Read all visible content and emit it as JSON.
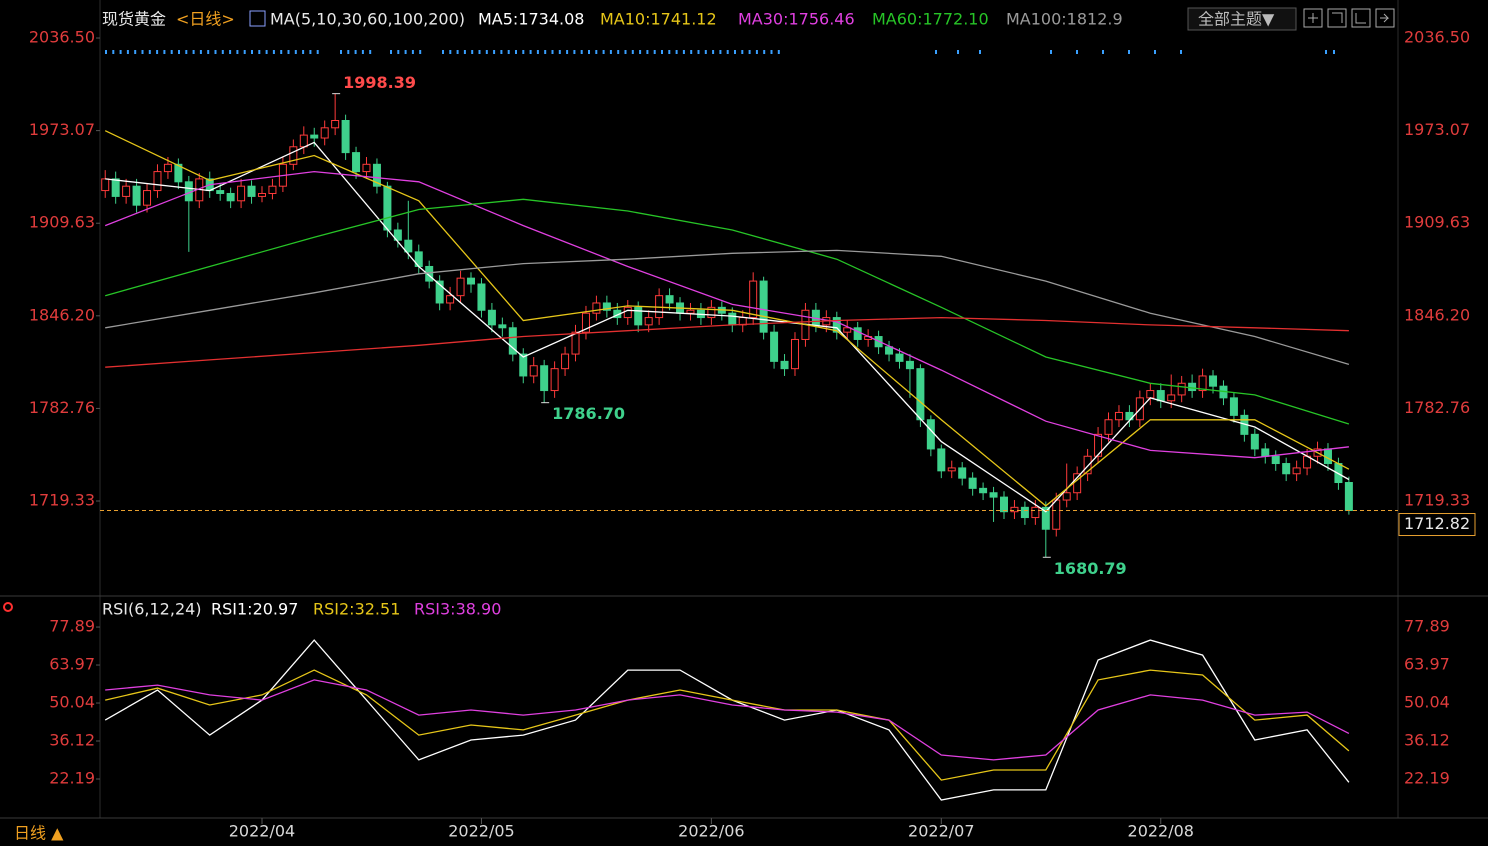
{
  "ui": {
    "theme_button": "全部主题▼",
    "period_button": "日线 ▲"
  },
  "chart_data": [
    {
      "type": "candlestick",
      "title": "现货黄金",
      "period": "<日线>",
      "indicator": "MA(5,10,30,60,100,200)",
      "up_color": "#ff3b3b",
      "down_color": "#3fd18c",
      "candles": [
        [
          1932,
          1946,
          1927,
          1940
        ],
        [
          1940,
          1945,
          1923,
          1928
        ],
        [
          1928,
          1940,
          1923,
          1935
        ],
        [
          1935,
          1940,
          1917,
          1922
        ],
        [
          1922,
          1937,
          1917,
          1932
        ],
        [
          1932,
          1950,
          1927,
          1945
        ],
        [
          1945,
          1955,
          1940,
          1950
        ],
        [
          1950,
          1954,
          1933,
          1938
        ],
        [
          1938,
          1942,
          1890,
          1925
        ],
        [
          1925,
          1944,
          1920,
          1940
        ],
        [
          1940,
          1945,
          1927,
          1932
        ],
        [
          1932,
          1937,
          1925,
          1930
        ],
        [
          1930,
          1934,
          1920,
          1925
        ],
        [
          1925,
          1940,
          1920,
          1935
        ],
        [
          1935,
          1939,
          1923,
          1928
        ],
        [
          1928,
          1935,
          1924,
          1930
        ],
        [
          1930,
          1940,
          1926,
          1935
        ],
        [
          1935,
          1955,
          1931,
          1950
        ],
        [
          1950,
          1967,
          1946,
          1962
        ],
        [
          1962,
          1976,
          1957,
          1970
        ],
        [
          1970,
          1975,
          1962,
          1968
        ],
        [
          1968,
          1980,
          1963,
          1975
        ],
        [
          1975,
          1998.39,
          1970,
          1980
        ],
        [
          1980,
          1984,
          1953,
          1958
        ],
        [
          1958,
          1962,
          1940,
          1945
        ],
        [
          1945,
          1955,
          1940,
          1950
        ],
        [
          1950,
          1954,
          1930,
          1935
        ],
        [
          1935,
          1938,
          1900,
          1905
        ],
        [
          1905,
          1910,
          1893,
          1898
        ],
        [
          1898,
          1925,
          1885,
          1890
        ],
        [
          1890,
          1895,
          1875,
          1880
        ],
        [
          1880,
          1884,
          1865,
          1870
        ],
        [
          1870,
          1874,
          1850,
          1855
        ],
        [
          1855,
          1866,
          1850,
          1860
        ],
        [
          1860,
          1877,
          1855,
          1872
        ],
        [
          1872,
          1876,
          1862,
          1868
        ],
        [
          1868,
          1872,
          1845,
          1850
        ],
        [
          1850,
          1855,
          1835,
          1840
        ],
        [
          1840,
          1845,
          1832,
          1838
        ],
        [
          1838,
          1842,
          1815,
          1820
        ],
        [
          1820,
          1824,
          1800,
          1805
        ],
        [
          1805,
          1818,
          1800,
          1812
        ],
        [
          1812,
          1816,
          1786.7,
          1795
        ],
        [
          1795,
          1815,
          1790,
          1810
        ],
        [
          1810,
          1825,
          1805,
          1820
        ],
        [
          1820,
          1840,
          1815,
          1835
        ],
        [
          1835,
          1853,
          1830,
          1848
        ],
        [
          1848,
          1860,
          1843,
          1855
        ],
        [
          1855,
          1860,
          1845,
          1850
        ],
        [
          1850,
          1855,
          1840,
          1845
        ],
        [
          1845,
          1857,
          1840,
          1852
        ],
        [
          1852,
          1856,
          1835,
          1840
        ],
        [
          1840,
          1850,
          1835,
          1845
        ],
        [
          1845,
          1865,
          1840,
          1860
        ],
        [
          1860,
          1865,
          1850,
          1855
        ],
        [
          1855,
          1859,
          1843,
          1848
        ],
        [
          1848,
          1855,
          1843,
          1850
        ],
        [
          1850,
          1855,
          1840,
          1845
        ],
        [
          1845,
          1857,
          1840,
          1852
        ],
        [
          1852,
          1856,
          1843,
          1848
        ],
        [
          1848,
          1852,
          1835,
          1840
        ],
        [
          1840,
          1850,
          1835,
          1845
        ],
        [
          1845,
          1876,
          1840,
          1870
        ],
        [
          1870,
          1873,
          1830,
          1835
        ],
        [
          1835,
          1840,
          1810,
          1815
        ],
        [
          1815,
          1820,
          1805,
          1810
        ],
        [
          1810,
          1835,
          1805,
          1830
        ],
        [
          1830,
          1855,
          1825,
          1850
        ],
        [
          1850,
          1855,
          1835,
          1840
        ],
        [
          1840,
          1850,
          1835,
          1845
        ],
        [
          1845,
          1849,
          1830,
          1835
        ],
        [
          1835,
          1843,
          1830,
          1838
        ],
        [
          1838,
          1842,
          1825,
          1830
        ],
        [
          1830,
          1837,
          1825,
          1832
        ],
        [
          1832,
          1836,
          1820,
          1825
        ],
        [
          1825,
          1829,
          1815,
          1820
        ],
        [
          1820,
          1824,
          1810,
          1815
        ],
        [
          1815,
          1820,
          1790,
          1810
        ],
        [
          1810,
          1813,
          1770,
          1775
        ],
        [
          1775,
          1778,
          1750,
          1755
        ],
        [
          1755,
          1758,
          1735,
          1740
        ],
        [
          1740,
          1747,
          1735,
          1742
        ],
        [
          1742,
          1746,
          1730,
          1735
        ],
        [
          1735,
          1739,
          1723,
          1728
        ],
        [
          1728,
          1732,
          1720,
          1725
        ],
        [
          1725,
          1729,
          1705,
          1722
        ],
        [
          1722,
          1726,
          1707,
          1712
        ],
        [
          1712,
          1720,
          1707,
          1715
        ],
        [
          1715,
          1719,
          1703,
          1708
        ],
        [
          1708,
          1720,
          1703,
          1715
        ],
        [
          1715,
          1719,
          1680.79,
          1700
        ],
        [
          1700,
          1725,
          1695,
          1720
        ],
        [
          1720,
          1745,
          1715,
          1725
        ],
        [
          1725,
          1743,
          1720,
          1738
        ],
        [
          1738,
          1755,
          1733,
          1750
        ],
        [
          1750,
          1770,
          1745,
          1765
        ],
        [
          1765,
          1780,
          1760,
          1775
        ],
        [
          1775,
          1785,
          1770,
          1780
        ],
        [
          1780,
          1785,
          1770,
          1775
        ],
        [
          1775,
          1795,
          1770,
          1790
        ],
        [
          1790,
          1800,
          1785,
          1795
        ],
        [
          1795,
          1800,
          1783,
          1788
        ],
        [
          1788,
          1806,
          1783,
          1792
        ],
        [
          1792,
          1805,
          1787,
          1800
        ],
        [
          1800,
          1806,
          1790,
          1795
        ],
        [
          1795,
          1810,
          1790,
          1805
        ],
        [
          1805,
          1809,
          1793,
          1798
        ],
        [
          1798,
          1802,
          1785,
          1790
        ],
        [
          1790,
          1794,
          1773,
          1778
        ],
        [
          1778,
          1782,
          1760,
          1765
        ],
        [
          1765,
          1769,
          1750,
          1755
        ],
        [
          1755,
          1759,
          1745,
          1750
        ],
        [
          1750,
          1754,
          1740,
          1745
        ],
        [
          1745,
          1749,
          1733,
          1738
        ],
        [
          1738,
          1747,
          1733,
          1742
        ],
        [
          1742,
          1755,
          1737,
          1750
        ],
        [
          1750,
          1760,
          1745,
          1755
        ],
        [
          1755,
          1759,
          1740,
          1745
        ],
        [
          1745,
          1749,
          1727,
          1732
        ],
        [
          1732,
          1736,
          1710,
          1712.82
        ]
      ],
      "xlim": [
        -0.5,
        123.7
      ],
      "xticks": [
        {
          "value": 15,
          "label": "2022/04"
        },
        {
          "value": 36,
          "label": "2022/05"
        },
        {
          "value": 58,
          "label": "2022/06"
        },
        {
          "value": 80,
          "label": "2022/07"
        },
        {
          "value": 101,
          "label": "2022/08"
        }
      ],
      "ylim": [
        1657,
        2055.7
      ],
      "yticks": [
        {
          "value": 2036.5,
          "label": "2036.50"
        },
        1973.07,
        1909.63,
        {
          "value": 1846.2,
          "label": "1846.20"
        },
        1782.76,
        1719.33
      ],
      "ma_x": [
        0,
        10,
        20,
        30,
        40,
        50,
        60,
        70,
        80,
        90,
        100,
        110,
        119
      ],
      "series": [
        {
          "name": "MA5:1734.08",
          "color": "#ffffff",
          "values": [
            1940,
            1932,
            1965,
            1880,
            1818,
            1850,
            1846,
            1838,
            1760,
            1712,
            1790,
            1770,
            1734.08
          ]
        },
        {
          "name": "MA10:1741.12",
          "color": "#e6c619",
          "values": [
            1973,
            1939,
            1956,
            1925,
            1843,
            1853,
            1850,
            1836,
            1775,
            1716,
            1775,
            1775,
            1741.12
          ]
        },
        {
          "name": "MA30:1756.46",
          "color": "#e040e0",
          "values": [
            1908,
            1936,
            1945,
            1938,
            1908,
            1880,
            1854,
            1842,
            1809,
            1774,
            1754,
            1749,
            1756.46
          ]
        },
        {
          "name": "MA60:1772.10",
          "color": "#27c427",
          "values": [
            1860,
            1880,
            1900,
            1919,
            1926,
            1918,
            1905,
            1885,
            1852,
            1818,
            1800,
            1792,
            1772.1
          ]
        },
        {
          "name": "MA100:1812.9",
          "color": "#9a9a9a",
          "values": [
            1838,
            1850,
            1862,
            1875,
            1882,
            1885,
            1889,
            1891,
            1887,
            1870,
            1848,
            1832,
            1812.9
          ]
        },
        {
          "color": "#e33030",
          "values": [
            1811,
            1816,
            1821,
            1826,
            1832,
            1836,
            1840,
            1843,
            1845,
            1843,
            1840,
            1838,
            1836
          ]
        }
      ],
      "annotations": [
        {
          "x": 22,
          "value": 1998.39,
          "color": "#ff4b4b"
        },
        {
          "x": 42,
          "value": 1786.7,
          "label": "1786.70",
          "color": "#3fd18c"
        },
        {
          "x": 90,
          "value": 1680.79,
          "color": "#3fd18c"
        }
      ]
    },
    {
      "type": "line",
      "title": "RSI(6,12,24)",
      "x": [
        0,
        5,
        10,
        15,
        20,
        25,
        30,
        35,
        40,
        45,
        50,
        55,
        60,
        65,
        70,
        75,
        80,
        85,
        90,
        95,
        100,
        105,
        110,
        115,
        119
      ],
      "xlim": [
        -0.5,
        123.7
      ],
      "ylim": [
        9,
        87.8
      ],
      "yticks": [
        77.89,
        63.97,
        50.04,
        36.12,
        22.19
      ],
      "series": [
        {
          "name": "RSI1:20.97",
          "color": "#ffffff",
          "values": [
            43.8,
            54.8,
            38.3,
            51.1,
            73.1,
            51.1,
            29.2,
            36.5,
            38.3,
            43.8,
            62.1,
            62.1,
            51.1,
            43.8,
            47.5,
            40.2,
            14.5,
            18.2,
            18.2,
            65.8,
            73.1,
            67.6,
            36.5,
            40.2,
            20.97
          ]
        },
        {
          "name": "RSI2:32.51",
          "color": "#e6c619",
          "values": [
            51.1,
            55.5,
            49.3,
            53.0,
            62.1,
            53.0,
            38.3,
            42.0,
            40.2,
            45.6,
            51.1,
            54.8,
            51.1,
            47.5,
            47.5,
            43.8,
            21.8,
            25.5,
            25.5,
            58.5,
            62.1,
            60.3,
            43.8,
            45.6,
            32.51
          ]
        },
        {
          "name": "RSI3:38.90",
          "color": "#e040e0",
          "values": [
            54.8,
            56.6,
            53.0,
            51.1,
            58.5,
            54.8,
            45.6,
            47.5,
            45.6,
            47.5,
            51.1,
            53.0,
            49.3,
            47.5,
            46.7,
            43.8,
            31.0,
            29.2,
            31.0,
            47.5,
            53.0,
            51.1,
            45.6,
            46.7,
            38.9
          ]
        }
      ]
    }
  ]
}
